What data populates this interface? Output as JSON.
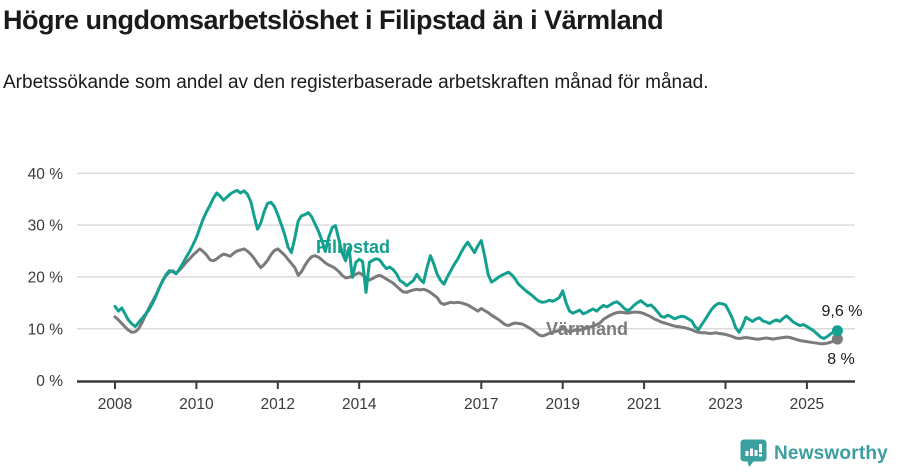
{
  "header": {
    "title": "Högre ungdomsarbetslöshet i Filipstad än i Värmland",
    "subtitle": "Arbetssökande som andel av den registerbaserade arbetskraften månad för månad."
  },
  "chart_data": {
    "type": "line",
    "unit": "%",
    "frequency": "monthly",
    "x_start": "2008-01",
    "x_end": "2025-10",
    "ylim": [
      0,
      42
    ],
    "grid": "horizontal",
    "x_tick_labels": [
      "2008",
      "2010",
      "2012",
      "2014",
      "2017",
      "2019",
      "2021",
      "2023",
      "2025"
    ],
    "x_tick_years": [
      2008,
      2010,
      2012,
      2014,
      2017,
      2019,
      2021,
      2023,
      2025
    ],
    "y_tick_labels": [
      "0 %",
      "10 %",
      "20 %",
      "30 %",
      "40 %"
    ],
    "y_tick_values": [
      0,
      10,
      20,
      30,
      40
    ],
    "series": [
      {
        "name": "Värmland",
        "color": "#7b7b7b",
        "end_label": "8 %",
        "last_value": 8.0,
        "values": [
          12.3,
          11.7,
          11.0,
          10.3,
          9.7,
          9.3,
          9.4,
          10.0,
          11.2,
          12.6,
          14.0,
          15.2,
          16.4,
          17.8,
          19.2,
          20.2,
          20.9,
          21.2,
          20.7,
          21.3,
          22.0,
          22.8,
          23.5,
          24.2,
          24.8,
          25.4,
          24.9,
          24.2,
          23.3,
          23.1,
          23.5,
          24.0,
          24.4,
          24.2,
          24.0,
          24.6,
          25.0,
          25.2,
          25.4,
          25.0,
          24.4,
          23.6,
          22.6,
          21.8,
          22.4,
          23.2,
          24.3,
          25.1,
          25.4,
          24.8,
          24.2,
          23.4,
          22.6,
          21.8,
          20.3,
          21.0,
          22.2,
          23.2,
          23.9,
          24.1,
          23.8,
          23.3,
          22.7,
          22.3,
          22.0,
          21.6,
          21.0,
          20.3,
          19.8,
          19.9,
          20.2,
          20.5,
          20.8,
          20.4,
          19.8,
          19.4,
          19.7,
          20.1,
          20.3,
          20.0,
          19.6,
          19.2,
          18.8,
          18.2,
          17.6,
          17.1,
          17.0,
          17.3,
          17.5,
          17.6,
          17.5,
          17.6,
          17.4,
          17.0,
          16.5,
          16.0,
          15.0,
          14.7,
          14.9,
          15.1,
          15.0,
          15.1,
          15.0,
          14.8,
          14.6,
          14.2,
          13.8,
          13.4,
          13.9,
          13.5,
          13.1,
          12.6,
          12.2,
          11.8,
          11.3,
          10.8,
          10.6,
          10.9,
          11.1,
          11.0,
          10.9,
          10.6,
          10.2,
          9.8,
          9.3,
          8.8,
          8.6,
          8.8,
          9.1,
          9.3,
          9.5,
          9.7,
          10.4,
          9.7,
          9.4,
          9.6,
          9.8,
          9.7,
          9.9,
          10.1,
          10.3,
          10.5,
          10.8,
          11.1,
          11.8,
          12.2,
          12.6,
          12.9,
          13.1,
          13.2,
          13.1,
          13.0,
          13.1,
          13.2,
          13.2,
          13.1,
          12.9,
          12.6,
          12.3,
          11.9,
          11.6,
          11.3,
          11.1,
          10.9,
          10.7,
          10.5,
          10.4,
          10.3,
          10.2,
          10.0,
          9.8,
          9.5,
          9.3,
          9.2,
          9.2,
          9.1,
          9.1,
          9.2,
          9.1,
          9.0,
          8.9,
          8.7,
          8.5,
          8.2,
          8.1,
          8.2,
          8.3,
          8.2,
          8.1,
          8.0,
          8.0,
          8.1,
          8.2,
          8.1,
          8.0,
          8.1,
          8.2,
          8.3,
          8.4,
          8.3,
          8.1,
          7.9,
          7.7,
          7.6,
          7.5,
          7.4,
          7.3,
          7.2,
          7.1,
          7.1,
          7.2,
          7.4,
          7.6,
          8.0
        ]
      },
      {
        "name": "Filipstad",
        "color": "#13a08f",
        "end_label": "9,6 %",
        "last_value": 9.6,
        "values": [
          14.3,
          13.4,
          14.0,
          12.8,
          11.6,
          10.9,
          10.4,
          11.2,
          12.0,
          12.8,
          13.6,
          14.8,
          16.2,
          17.8,
          19.2,
          20.4,
          21.2,
          21.0,
          20.6,
          21.5,
          22.6,
          23.8,
          24.9,
          26.2,
          27.6,
          29.4,
          31.2,
          32.6,
          33.8,
          35.2,
          36.2,
          35.6,
          34.8,
          35.4,
          36.0,
          36.4,
          36.7,
          36.2,
          36.6,
          36.0,
          34.6,
          31.8,
          29.2,
          30.4,
          32.6,
          34.2,
          34.4,
          33.6,
          32.0,
          30.2,
          28.2,
          25.8,
          24.7,
          27.5,
          30.8,
          31.8,
          32.0,
          32.4,
          31.6,
          30.2,
          28.8,
          27.0,
          24.9,
          27.6,
          29.5,
          29.9,
          27.2,
          24.6,
          23.1,
          25.6,
          19.9,
          22.8,
          23.4,
          23.0,
          17.0,
          22.8,
          23.2,
          23.5,
          23.3,
          22.4,
          21.6,
          21.9,
          21.4,
          20.6,
          19.3,
          18.9,
          18.3,
          18.8,
          19.3,
          20.5,
          19.5,
          18.9,
          21.8,
          24.1,
          22.5,
          20.5,
          19.3,
          18.6,
          20.0,
          21.2,
          22.4,
          23.4,
          24.7,
          25.8,
          26.7,
          25.7,
          24.7,
          26.0,
          27.0,
          24.0,
          20.5,
          19.0,
          19.4,
          19.9,
          20.3,
          20.6,
          20.9,
          20.4,
          19.6,
          18.6,
          18.0,
          17.4,
          16.9,
          16.4,
          15.8,
          15.3,
          15.1,
          15.2,
          15.5,
          15.3,
          15.6,
          16.0,
          17.3,
          15.0,
          13.4,
          13.0,
          13.3,
          13.6,
          12.9,
          13.1,
          13.5,
          13.8,
          13.4,
          14.0,
          14.5,
          14.2,
          14.6,
          15.0,
          15.2,
          14.7,
          14.0,
          13.5,
          13.8,
          14.5,
          15.0,
          15.4,
          14.9,
          14.4,
          14.6,
          14.0,
          13.2,
          12.4,
          12.2,
          12.6,
          12.3,
          11.9,
          12.2,
          12.4,
          12.3,
          11.9,
          11.5,
          10.4,
          9.8,
          10.8,
          11.8,
          12.8,
          13.8,
          14.5,
          14.9,
          14.8,
          14.6,
          13.4,
          12.0,
          10.2,
          9.3,
          10.5,
          12.2,
          11.8,
          11.4,
          11.9,
          12.1,
          11.5,
          11.3,
          11.0,
          11.4,
          11.7,
          11.4,
          12.0,
          12.5,
          11.9,
          11.3,
          10.9,
          10.6,
          10.8,
          10.4,
          10.0,
          9.6,
          9.0,
          8.4,
          8.1,
          8.5,
          9.0,
          9.4,
          9.6
        ]
      }
    ]
  },
  "footer": {
    "brand": "Newsworthy",
    "logo_color": "#3b9e9f"
  }
}
